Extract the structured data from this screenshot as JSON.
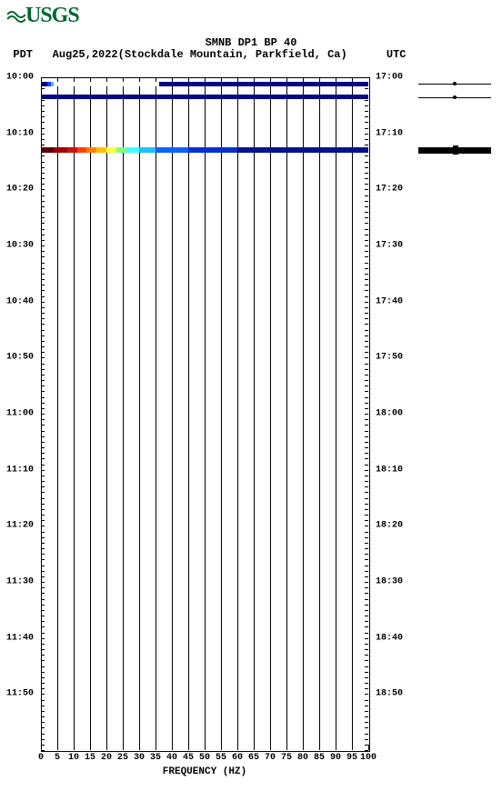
{
  "logo": {
    "text": "USGS",
    "color": "#006633"
  },
  "title": "SMNB DP1 BP 40",
  "subtitle_left_tz": "PDT",
  "subtitle_date": "Aug25,2022",
  "subtitle_location": "(Stockdale Mountain, Parkfield, Ca)",
  "subtitle_right_tz": "UTC",
  "xaxis": {
    "label": "FREQUENCY (HZ)",
    "min": 0,
    "max": 100,
    "ticks": [
      0,
      5,
      10,
      15,
      20,
      25,
      30,
      35,
      40,
      45,
      50,
      55,
      60,
      65,
      70,
      75,
      80,
      85,
      90,
      95,
      100
    ]
  },
  "yaxis_left": {
    "min_minutes": 600,
    "max_minutes": 720,
    "labels": [
      "10:00",
      "10:10",
      "10:20",
      "10:30",
      "10:40",
      "10:50",
      "11:00",
      "11:10",
      "11:20",
      "11:30",
      "11:40",
      "11:50"
    ],
    "label_step_min": 10
  },
  "yaxis_right": {
    "labels": [
      "17:00",
      "17:10",
      "17:20",
      "17:30",
      "17:40",
      "17:50",
      "18:00",
      "18:10",
      "18:20",
      "18:30",
      "18:40",
      "18:50"
    ]
  },
  "plot": {
    "background": "#ffffff",
    "grid_color": "#000000",
    "border_color": "#000000"
  },
  "spectro_events": [
    {
      "minute": 601.2,
      "gradient": [
        {
          "color": "#000080",
          "width": 0.02
        },
        {
          "color": "#1e3cff",
          "width": 0.01
        },
        {
          "color": "#4ab8ff",
          "width": 0.01
        },
        {
          "color": "#ffffff",
          "width": 0.32
        },
        {
          "color": "#060685",
          "width": 0.64
        }
      ],
      "full_width": true,
      "thickness": 5
    },
    {
      "minute": 603.5,
      "gradient": [
        {
          "color": "#060685",
          "width": 1.0
        }
      ],
      "full_width": true,
      "thickness": 5
    },
    {
      "minute": 613.0,
      "gradient": [
        {
          "color": "#5a0000",
          "width": 0.04
        },
        {
          "color": "#a00000",
          "width": 0.04
        },
        {
          "color": "#d01010",
          "width": 0.03
        },
        {
          "color": "#ff4000",
          "width": 0.03
        },
        {
          "color": "#ff8000",
          "width": 0.03
        },
        {
          "color": "#ffc000",
          "width": 0.03
        },
        {
          "color": "#ffff40",
          "width": 0.03
        },
        {
          "color": "#80ff80",
          "width": 0.03
        },
        {
          "color": "#40ffff",
          "width": 0.04
        },
        {
          "color": "#20c0ff",
          "width": 0.05
        },
        {
          "color": "#1060ff",
          "width": 0.1
        },
        {
          "color": "#0830d0",
          "width": 0.15
        },
        {
          "color": "#061090",
          "width": 0.4
        }
      ],
      "full_width": true,
      "thickness": 6
    }
  ],
  "waveforms": [
    {
      "minute": 601.2,
      "amplitude": "dot"
    },
    {
      "minute": 603.5,
      "amplitude": "dot"
    },
    {
      "minute": 613.0,
      "amplitude": "burst"
    }
  ]
}
